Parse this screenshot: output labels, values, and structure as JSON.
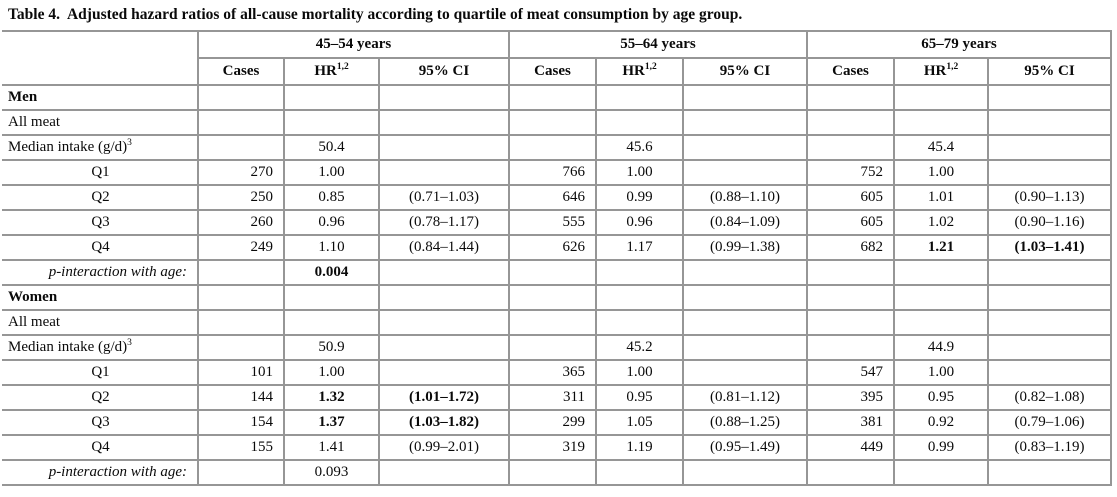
{
  "title": {
    "prefix": "Table 4.",
    "text": "Adjusted hazard ratios of all-cause mortality according to quartile of meat consumption by age group."
  },
  "table": {
    "col_groups": [
      {
        "label": "45–54 years"
      },
      {
        "label": "55–64 years"
      },
      {
        "label": "65–79 years"
      }
    ],
    "sub_headers": [
      {
        "label": "Cases"
      },
      {
        "label": "HR",
        "sup": "1,2"
      },
      {
        "label": "95% CI"
      }
    ],
    "rows": [
      {
        "label": "Men",
        "style": "section",
        "values": [
          "",
          "",
          "",
          "",
          "",
          "",
          "",
          "",
          ""
        ]
      },
      {
        "label": "All meat",
        "style": "plain",
        "values": [
          "",
          "",
          "",
          "",
          "",
          "",
          "",
          "",
          ""
        ]
      },
      {
        "label": "Median intake (g/d)",
        "label_sup": "3",
        "style": "plain",
        "values": [
          "",
          "50.4",
          "",
          "",
          "45.6",
          "",
          "",
          "45.4",
          ""
        ]
      },
      {
        "label": "Q1",
        "style": "quartile",
        "values": [
          "270",
          "1.00",
          "",
          "766",
          "1.00",
          "",
          "752",
          "1.00",
          ""
        ]
      },
      {
        "label": "Q2",
        "style": "quartile",
        "values": [
          "250",
          "0.85",
          "(0.71–1.03)",
          "646",
          "0.99",
          "(0.88–1.10)",
          "605",
          "1.01",
          "(0.90–1.13)"
        ]
      },
      {
        "label": "Q3",
        "style": "quartile",
        "values": [
          "260",
          "0.96",
          "(0.78–1.17)",
          "555",
          "0.96",
          "(0.84–1.09)",
          "605",
          "1.02",
          "(0.90–1.16)"
        ]
      },
      {
        "label": "Q4",
        "style": "quartile",
        "values": [
          "249",
          "1.10",
          "(0.84–1.44)",
          "626",
          "1.17",
          "(0.99–1.38)",
          "682",
          {
            "v": "1.21",
            "bold": true
          },
          {
            "v": "(1.03–1.41)",
            "bold": true
          }
        ]
      },
      {
        "label": "p-interaction with age:",
        "style": "pinteraction",
        "values": [
          "",
          {
            "v": "0.004",
            "bold": true
          },
          "",
          "",
          "",
          "",
          "",
          "",
          ""
        ]
      },
      {
        "label": "Women",
        "style": "section",
        "values": [
          "",
          "",
          "",
          "",
          "",
          "",
          "",
          "",
          ""
        ]
      },
      {
        "label": "All meat",
        "style": "plain",
        "values": [
          "",
          "",
          "",
          "",
          "",
          "",
          "",
          "",
          ""
        ]
      },
      {
        "label": "Median intake (g/d)",
        "label_sup": "3",
        "style": "plain",
        "values": [
          "",
          "50.9",
          "",
          "",
          "45.2",
          "",
          "",
          "44.9",
          ""
        ]
      },
      {
        "label": "Q1",
        "style": "quartile",
        "values": [
          "101",
          "1.00",
          "",
          "365",
          "1.00",
          "",
          "547",
          "1.00",
          ""
        ]
      },
      {
        "label": "Q2",
        "style": "quartile",
        "values": [
          "144",
          {
            "v": "1.32",
            "bold": true
          },
          {
            "v": "(1.01–1.72)",
            "bold": true
          },
          "311",
          "0.95",
          "(0.81–1.12)",
          "395",
          "0.95",
          "(0.82–1.08)"
        ]
      },
      {
        "label": "Q3",
        "style": "quartile",
        "values": [
          "154",
          {
            "v": "1.37",
            "bold": true
          },
          {
            "v": "(1.03–1.82)",
            "bold": true
          },
          "299",
          "1.05",
          "(0.88–1.25)",
          "381",
          "0.92",
          "(0.79–1.06)"
        ]
      },
      {
        "label": "Q4",
        "style": "quartile",
        "values": [
          "155",
          "1.41",
          "(0.99–2.01)",
          "319",
          "1.19",
          "(0.95–1.49)",
          "449",
          "0.99",
          "(0.83–1.19)"
        ]
      },
      {
        "label": "p-interaction with age:",
        "style": "pinteraction",
        "values": [
          "",
          "0.093",
          "",
          "",
          "",
          "",
          "",
          "",
          ""
        ]
      }
    ]
  }
}
